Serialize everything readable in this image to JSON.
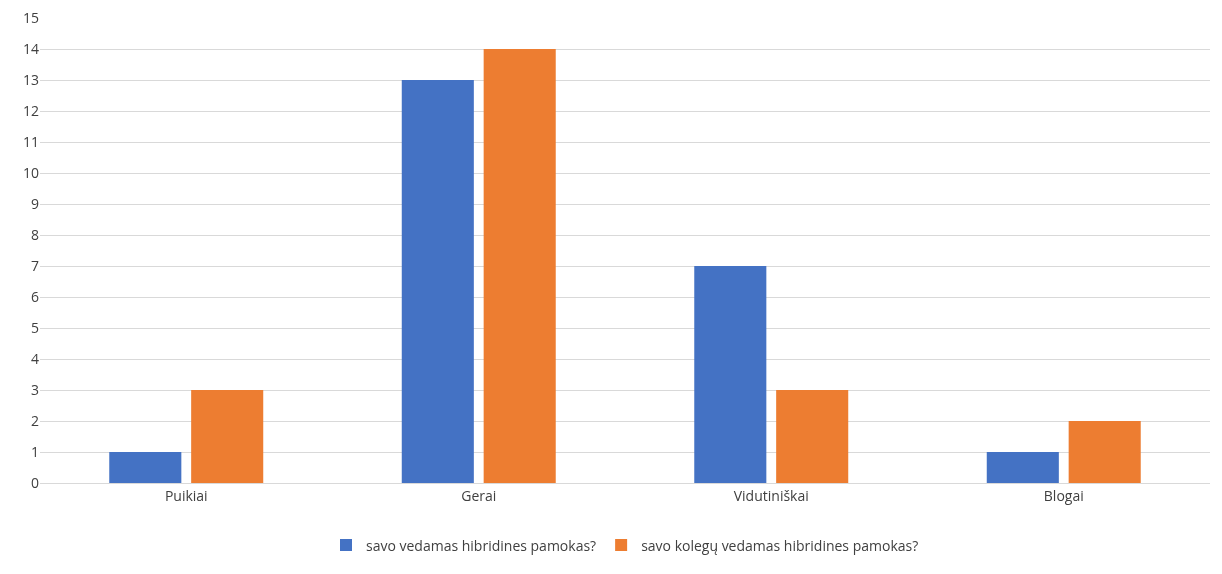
{
  "chart_data": {
    "type": "bar",
    "categories": [
      "Puikiai",
      "Gerai",
      "Vidutiniškai",
      "Blogai"
    ],
    "series": [
      {
        "name": "savo vedamas hibridines pamokas?",
        "color": "#4472c4",
        "values": [
          1,
          13,
          7,
          1
        ]
      },
      {
        "name": "savo kolegų vedamas hibridines pamokas?",
        "color": "#ed7d31",
        "values": [
          3,
          14,
          3,
          2
        ]
      }
    ],
    "ylim": [
      0,
      15
    ],
    "yticks": [
      0,
      1,
      2,
      3,
      4,
      5,
      6,
      7,
      8,
      9,
      10,
      11,
      12,
      13,
      14,
      15
    ],
    "grid": "y",
    "legend": "bottom"
  }
}
